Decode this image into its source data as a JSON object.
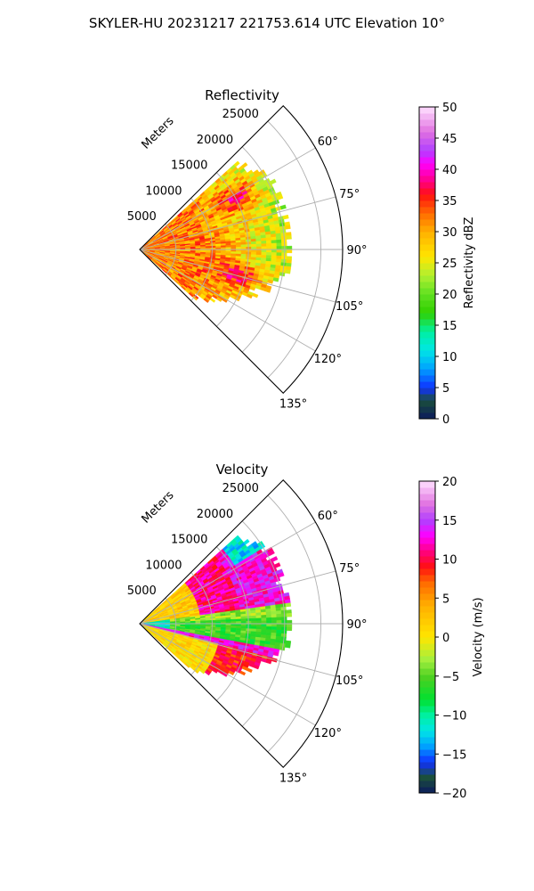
{
  "figure": {
    "title": "SKYLER-HU  20231217  221753.614 UTC Elevation 10°"
  },
  "chart_data": [
    {
      "type": "heatmap",
      "subtype": "polar-sector (radar PPI)",
      "title": "Reflectivity",
      "radial_axis_label": "Meters",
      "range_ticks": [
        5000,
        10000,
        15000,
        20000,
        25000
      ],
      "range_tick_labels": [
        "5000",
        "10000",
        "15000",
        "20000",
        "25000"
      ],
      "range_max": 28000,
      "azimuth_range_deg": [
        45,
        135
      ],
      "azimuth_ticks": [
        60,
        75,
        90,
        105,
        120,
        135
      ],
      "azimuth_tick_labels": [
        "60°",
        "75°",
        "90°",
        "105°",
        "120°",
        "135°"
      ],
      "grid": true,
      "colorbar": {
        "label": "Reflectivity dBZ",
        "min": 0,
        "max": 50,
        "ticks": [
          0,
          5,
          10,
          15,
          20,
          25,
          30,
          35,
          40,
          45,
          50
        ],
        "tick_labels": [
          "0",
          "5",
          "10",
          "15",
          "20",
          "25",
          "30",
          "35",
          "40",
          "45",
          "50"
        ],
        "colormap": "HomeyerRainbow-like",
        "stops": [
          {
            "value": 0,
            "color": "#0b1a5c"
          },
          {
            "value": 3,
            "color": "#1b4f3c"
          },
          {
            "value": 5,
            "color": "#1030ff"
          },
          {
            "value": 8,
            "color": "#00a0ff"
          },
          {
            "value": 11,
            "color": "#00e6e6"
          },
          {
            "value": 14,
            "color": "#00f0a0"
          },
          {
            "value": 17,
            "color": "#30d000"
          },
          {
            "value": 20,
            "color": "#60e020"
          },
          {
            "value": 23,
            "color": "#b0f030"
          },
          {
            "value": 26,
            "color": "#ffe600"
          },
          {
            "value": 30,
            "color": "#ffb000"
          },
          {
            "value": 33,
            "color": "#ff6a00"
          },
          {
            "value": 36,
            "color": "#ff1010"
          },
          {
            "value": 38,
            "color": "#ff0080"
          },
          {
            "value": 41,
            "color": "#ff00ff"
          },
          {
            "value": 43,
            "color": "#b040ff"
          },
          {
            "value": 46,
            "color": "#e070e0"
          },
          {
            "value": 50,
            "color": "#ffe0ff"
          }
        ]
      },
      "field_description_values": {
        "near_range_dbz": 32,
        "mid_range_dbz": 28,
        "far_range_dbz": 20,
        "hotspot_dbz": 38
      }
    },
    {
      "type": "heatmap",
      "subtype": "polar-sector (radar PPI)",
      "title": "Velocity",
      "radial_axis_label": "Meters",
      "range_ticks": [
        5000,
        10000,
        15000,
        20000,
        25000
      ],
      "range_tick_labels": [
        "5000",
        "10000",
        "15000",
        "20000",
        "25000"
      ],
      "range_max": 28000,
      "azimuth_range_deg": [
        45,
        135
      ],
      "azimuth_ticks": [
        60,
        75,
        90,
        105,
        120,
        135
      ],
      "azimuth_tick_labels": [
        "60°",
        "75°",
        "90°",
        "105°",
        "120°",
        "135°"
      ],
      "grid": true,
      "colorbar": {
        "label": "Velocity (m/s)",
        "min": -20,
        "max": 20,
        "ticks": [
          -20,
          -15,
          -10,
          -5,
          0,
          5,
          10,
          15,
          20
        ],
        "tick_labels": [
          "−20",
          "−15",
          "−10",
          "−5",
          "0",
          "5",
          "10",
          "15",
          "20"
        ],
        "colormap": "balance-rainbow",
        "stops": [
          {
            "value": -20,
            "color": "#0b1a5c"
          },
          {
            "value": -18,
            "color": "#1b4f3c"
          },
          {
            "value": -16,
            "color": "#1030ff"
          },
          {
            "value": -14,
            "color": "#00a0ff"
          },
          {
            "value": -12,
            "color": "#00e6e6"
          },
          {
            "value": -10,
            "color": "#00f0a0"
          },
          {
            "value": -8,
            "color": "#00e030"
          },
          {
            "value": -5,
            "color": "#50d020"
          },
          {
            "value": -3,
            "color": "#a0f040"
          },
          {
            "value": 0,
            "color": "#ffe600"
          },
          {
            "value": 4,
            "color": "#ffb000"
          },
          {
            "value": 7,
            "color": "#ff6a00"
          },
          {
            "value": 9,
            "color": "#ff1010"
          },
          {
            "value": 11,
            "color": "#ff0080"
          },
          {
            "value": 13,
            "color": "#ff00ff"
          },
          {
            "value": 15,
            "color": "#b040ff"
          },
          {
            "value": 17,
            "color": "#e070e0"
          },
          {
            "value": 20,
            "color": "#ffe0ff"
          }
        ]
      },
      "field_description_values": {
        "north_far_ms": 13,
        "north_mid_ms": 11,
        "north_near_ms": 2,
        "center_ms": -6,
        "south_near_ms": 1,
        "south_far_ms": 9,
        "edge_ms": 13
      }
    }
  ]
}
